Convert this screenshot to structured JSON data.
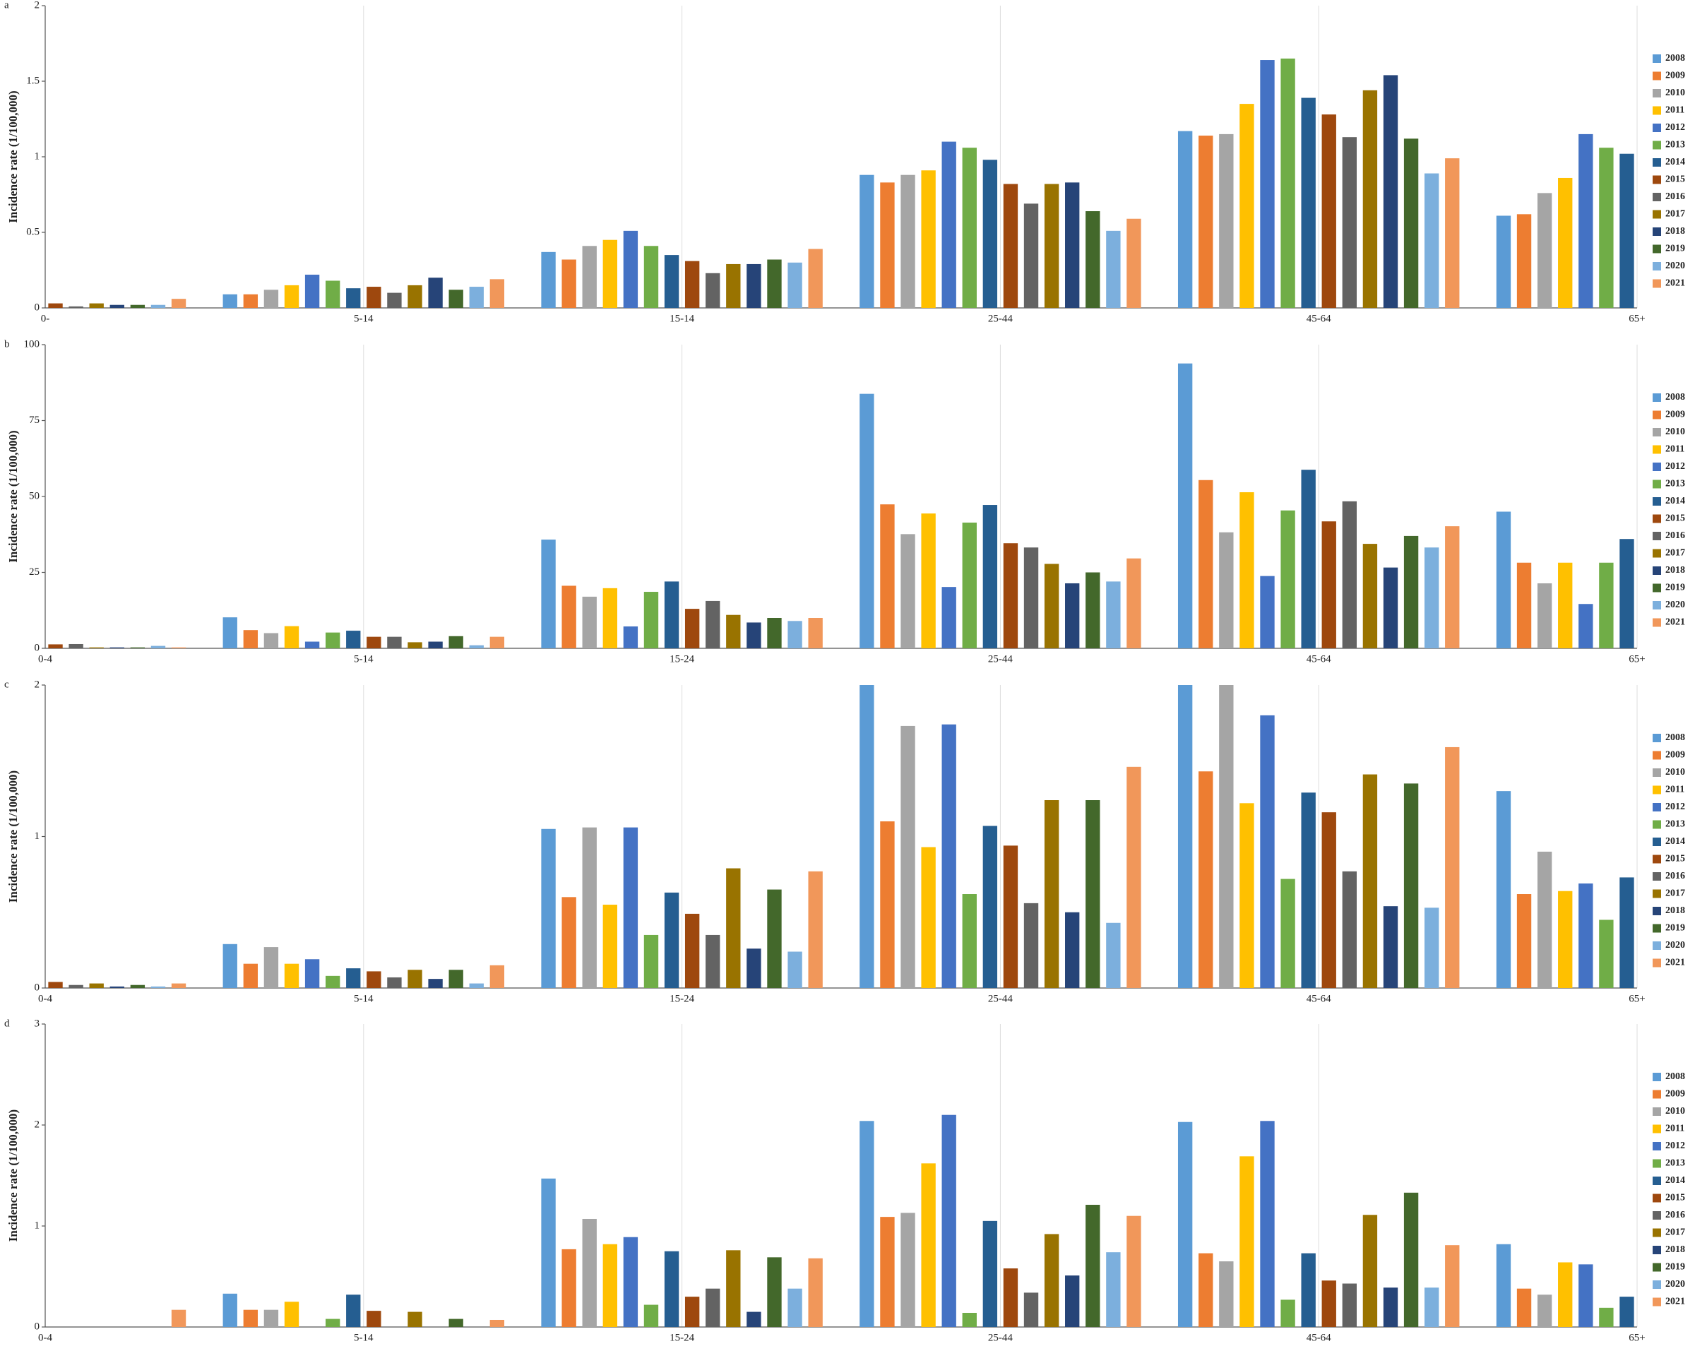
{
  "chart_data": [
    {
      "type": "bar",
      "label": "a",
      "y_label": "Incidence rate (1/100,000)",
      "categories": [
        "0-",
        "5-14",
        "15-14",
        "25-44",
        "45-64",
        "65+"
      ],
      "ylim": [
        0,
        2
      ],
      "yticks": [
        0,
        0.5,
        1,
        1.5,
        2
      ],
      "series": [
        {
          "name": "2008",
          "color": "#5b9bd5",
          "values": [
            null,
            0.09,
            0.37,
            0.88,
            1.17,
            0.61
          ]
        },
        {
          "name": "2009",
          "color": "#ed7d31",
          "values": [
            null,
            0.09,
            0.32,
            0.83,
            1.14,
            0.62
          ]
        },
        {
          "name": "2010",
          "color": "#a5a5a5",
          "values": [
            null,
            0.12,
            0.41,
            0.88,
            1.15,
            0.76
          ]
        },
        {
          "name": "2011",
          "color": "#ffc000",
          "values": [
            null,
            0.15,
            0.45,
            0.91,
            1.35,
            0.86
          ]
        },
        {
          "name": "2012",
          "color": "#4472c4",
          "values": [
            null,
            0.22,
            0.51,
            1.1,
            1.64,
            1.15
          ]
        },
        {
          "name": "2013",
          "color": "#70ad47",
          "values": [
            null,
            0.18,
            0.41,
            1.06,
            1.65,
            1.06
          ]
        },
        {
          "name": "2014",
          "color": "#255e91",
          "values": [
            null,
            0.13,
            0.35,
            0.98,
            1.39,
            1.02
          ]
        },
        {
          "name": "2015",
          "color": "#9e480e",
          "values": [
            0.03,
            0.14,
            0.31,
            0.82,
            1.28,
            null
          ]
        },
        {
          "name": "2016",
          "color": "#636363",
          "values": [
            0.01,
            0.1,
            0.23,
            0.69,
            1.13,
            null
          ]
        },
        {
          "name": "2017",
          "color": "#997300",
          "values": [
            0.03,
            0.15,
            0.29,
            0.82,
            1.44,
            null
          ]
        },
        {
          "name": "2018",
          "color": "#264478",
          "values": [
            0.02,
            0.2,
            0.29,
            0.83,
            1.54,
            null
          ]
        },
        {
          "name": "2019",
          "color": "#43682b",
          "values": [
            0.02,
            0.12,
            0.32,
            0.64,
            1.12,
            null
          ]
        },
        {
          "name": "2020",
          "color": "#7cafdd",
          "values": [
            0.02,
            0.14,
            0.3,
            0.51,
            0.89,
            null
          ]
        },
        {
          "name": "2021",
          "color": "#f1975a",
          "values": [
            0.06,
            0.19,
            0.39,
            0.59,
            0.99,
            null
          ]
        }
      ]
    },
    {
      "type": "bar",
      "label": "b",
      "y_label": "Incidence rate (1/100,000)",
      "categories": [
        "0-4",
        "5-14",
        "15-24",
        "25-44",
        "45-64",
        "65+"
      ],
      "ylim": [
        0,
        100
      ],
      "yticks": [
        0,
        25,
        50,
        75,
        100
      ],
      "series": [
        {
          "name": "2008",
          "color": "#5b9bd5",
          "values": [
            null,
            10.2,
            35.8,
            83.8,
            93.8,
            45.0
          ]
        },
        {
          "name": "2009",
          "color": "#ed7d31",
          "values": [
            null,
            6.0,
            20.6,
            47.4,
            55.4,
            28.2
          ]
        },
        {
          "name": "2010",
          "color": "#a5a5a5",
          "values": [
            null,
            5.0,
            17.0,
            37.6,
            38.2,
            21.4
          ]
        },
        {
          "name": "2011",
          "color": "#ffc000",
          "values": [
            null,
            7.3,
            19.8,
            44.4,
            51.4,
            28.2
          ]
        },
        {
          "name": "2012",
          "color": "#4472c4",
          "values": [
            null,
            2.2,
            7.2,
            20.2,
            23.8,
            14.6
          ]
        },
        {
          "name": "2013",
          "color": "#70ad47",
          "values": [
            null,
            5.2,
            18.6,
            41.4,
            45.4,
            28.2
          ]
        },
        {
          "name": "2014",
          "color": "#255e91",
          "values": [
            null,
            5.8,
            22.0,
            47.2,
            58.8,
            36.0
          ]
        },
        {
          "name": "2015",
          "color": "#9e480e",
          "values": [
            1.3,
            3.8,
            13.0,
            34.6,
            41.8,
            null
          ]
        },
        {
          "name": "2016",
          "color": "#636363",
          "values": [
            1.4,
            3.8,
            15.6,
            33.2,
            48.4,
            null
          ]
        },
        {
          "name": "2017",
          "color": "#997300",
          "values": [
            0.3,
            2.0,
            11.0,
            27.8,
            34.4,
            null
          ]
        },
        {
          "name": "2018",
          "color": "#264478",
          "values": [
            0.3,
            2.2,
            8.5,
            21.4,
            26.6,
            null
          ]
        },
        {
          "name": "2019",
          "color": "#43682b",
          "values": [
            0.3,
            4.0,
            10.0,
            25.0,
            37.0,
            null
          ]
        },
        {
          "name": "2020",
          "color": "#7cafdd",
          "values": [
            0.8,
            1.0,
            9.0,
            22.0,
            33.2,
            null
          ]
        },
        {
          "name": "2021",
          "color": "#f1975a",
          "values": [
            0.3,
            3.8,
            10.0,
            29.6,
            40.2,
            null
          ]
        }
      ]
    },
    {
      "type": "bar",
      "label": "c",
      "y_label": "Incidence rate (1/100,000)",
      "categories": [
        "0-4",
        "5-14",
        "15-24",
        "25-44",
        "45-64",
        "65+"
      ],
      "ylim": [
        0,
        2
      ],
      "yticks": [
        0,
        1,
        2
      ],
      "series": [
        {
          "name": "2008",
          "color": "#5b9bd5",
          "values": [
            null,
            0.29,
            1.05,
            2.0,
            2.0,
            1.3
          ]
        },
        {
          "name": "2009",
          "color": "#ed7d31",
          "values": [
            null,
            0.16,
            0.6,
            1.1,
            1.43,
            0.62
          ]
        },
        {
          "name": "2010",
          "color": "#a5a5a5",
          "values": [
            null,
            0.27,
            1.06,
            1.73,
            2.0,
            0.9
          ]
        },
        {
          "name": "2011",
          "color": "#ffc000",
          "values": [
            null,
            0.16,
            0.55,
            0.93,
            1.22,
            0.64
          ]
        },
        {
          "name": "2012",
          "color": "#4472c4",
          "values": [
            null,
            0.19,
            1.06,
            1.74,
            1.8,
            0.69
          ]
        },
        {
          "name": "2013",
          "color": "#70ad47",
          "values": [
            null,
            0.08,
            0.35,
            0.62,
            0.72,
            0.45
          ]
        },
        {
          "name": "2014",
          "color": "#255e91",
          "values": [
            null,
            0.13,
            0.63,
            1.07,
            1.29,
            0.73
          ]
        },
        {
          "name": "2015",
          "color": "#9e480e",
          "values": [
            0.04,
            0.11,
            0.49,
            0.94,
            1.16,
            null
          ]
        },
        {
          "name": "2016",
          "color": "#636363",
          "values": [
            0.02,
            0.07,
            0.35,
            0.56,
            0.77,
            null
          ]
        },
        {
          "name": "2017",
          "color": "#997300",
          "values": [
            0.03,
            0.12,
            0.79,
            1.24,
            1.41,
            null
          ]
        },
        {
          "name": "2018",
          "color": "#264478",
          "values": [
            0.01,
            0.06,
            0.26,
            0.5,
            0.54,
            null
          ]
        },
        {
          "name": "2019",
          "color": "#43682b",
          "values": [
            0.02,
            0.12,
            0.65,
            1.24,
            1.35,
            null
          ]
        },
        {
          "name": "2020",
          "color": "#7cafdd",
          "values": [
            0.01,
            0.03,
            0.24,
            0.43,
            0.53,
            null
          ]
        },
        {
          "name": "2021",
          "color": "#f1975a",
          "values": [
            0.03,
            0.15,
            0.77,
            1.46,
            1.59,
            null
          ]
        }
      ]
    },
    {
      "type": "bar",
      "label": "d",
      "y_label": "Incidence rate (1/100,000)",
      "categories": [
        "0-4",
        "5-14",
        "15-24",
        "25-44",
        "45-64",
        "65+"
      ],
      "ylim": [
        0,
        3
      ],
      "yticks": [
        0,
        1,
        2,
        3
      ],
      "series": [
        {
          "name": "2008",
          "color": "#5b9bd5",
          "values": [
            null,
            0.33,
            1.47,
            2.04,
            2.03,
            0.82
          ]
        },
        {
          "name": "2009",
          "color": "#ed7d31",
          "values": [
            null,
            0.17,
            0.77,
            1.09,
            0.73,
            0.38
          ]
        },
        {
          "name": "2010",
          "color": "#a5a5a5",
          "values": [
            null,
            0.17,
            1.07,
            1.13,
            0.65,
            0.32
          ]
        },
        {
          "name": "2011",
          "color": "#ffc000",
          "values": [
            null,
            0.25,
            0.82,
            1.62,
            1.69,
            0.64
          ]
        },
        {
          "name": "2012",
          "color": "#4472c4",
          "values": [
            null,
            0,
            0.89,
            2.1,
            2.04,
            0.62
          ]
        },
        {
          "name": "2013",
          "color": "#70ad47",
          "values": [
            null,
            0.08,
            0.22,
            0.14,
            0.27,
            0.19
          ]
        },
        {
          "name": "2014",
          "color": "#255e91",
          "values": [
            null,
            0.32,
            0.75,
            1.05,
            0.73,
            0.3
          ]
        },
        {
          "name": "2015",
          "color": "#9e480e",
          "values": [
            0,
            0.16,
            0.3,
            0.58,
            0.46,
            null
          ]
        },
        {
          "name": "2016",
          "color": "#636363",
          "values": [
            0,
            0,
            0.38,
            0.34,
            0.43,
            null
          ]
        },
        {
          "name": "2017",
          "color": "#997300",
          "values": [
            0,
            0.15,
            0.76,
            0.92,
            1.11,
            null
          ]
        },
        {
          "name": "2018",
          "color": "#264478",
          "values": [
            0,
            0,
            0.15,
            0.51,
            0.39,
            null
          ]
        },
        {
          "name": "2019",
          "color": "#43682b",
          "values": [
            0,
            0.08,
            0.69,
            1.21,
            1.33,
            null
          ]
        },
        {
          "name": "2020",
          "color": "#7cafdd",
          "values": [
            0,
            0,
            0.38,
            0.74,
            0.39,
            null
          ]
        },
        {
          "name": "2021",
          "color": "#f1975a",
          "values": [
            0.17,
            0.07,
            0.68,
            1.1,
            0.81,
            null
          ]
        }
      ]
    }
  ]
}
